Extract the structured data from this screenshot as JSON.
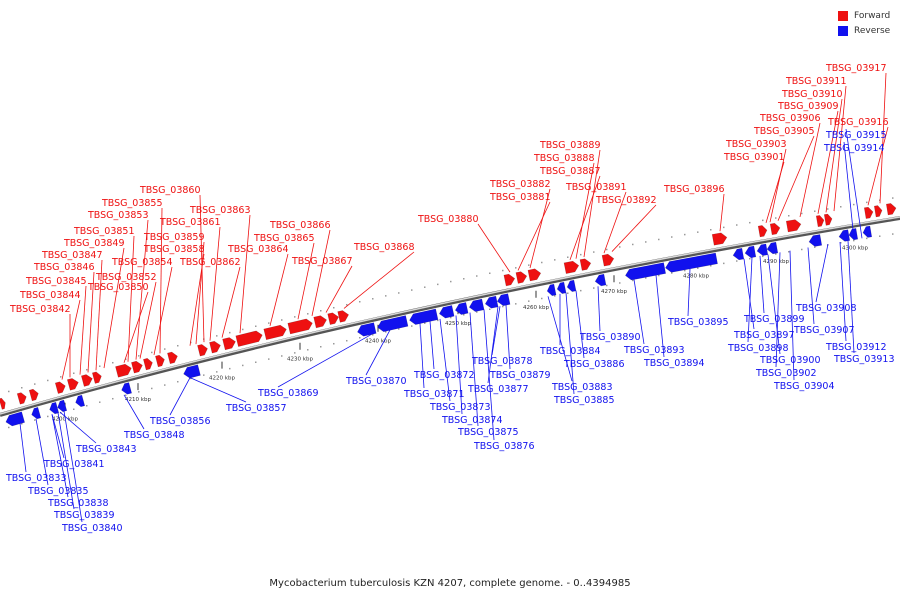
{
  "legend": {
    "forward_label": "Forward",
    "reverse_label": "Reverse",
    "forward_color": "#ee1111",
    "reverse_color": "#1111ee"
  },
  "caption": "Mycobacterium tuberculosis KZN 4207, complete genome. - 0..4394985",
  "tick_labels": [
    "4200 kbp",
    "4210 kbp",
    "4220 kbp",
    "4230 kbp",
    "4240 kbp",
    "4250 kbp",
    "4260 kbp",
    "4270 kbp",
    "4280 kbp",
    "4290 kbp",
    "4300 kbp"
  ],
  "forward_genes": [
    "TBSG_03842",
    "TBSG_03844",
    "TBSG_03845",
    "TBSG_03846",
    "TBSG_03847",
    "TBSG_03849",
    "TBSG_03850",
    "TBSG_03851",
    "TBSG_03852",
    "TBSG_03853",
    "TBSG_03854",
    "TBSG_03855",
    "TBSG_03858",
    "TBSG_03859",
    "TBSG_03860",
    "TBSG_03861",
    "TBSG_03862",
    "TBSG_03863",
    "TBSG_03864",
    "TBSG_03865",
    "TBSG_03866",
    "TBSG_03867",
    "TBSG_03868",
    "TBSG_03880",
    "TBSG_03881",
    "TBSG_03882",
    "TBSG_03887",
    "TBSG_03888",
    "TBSG_03889",
    "TBSG_03891",
    "TBSG_03892",
    "TBSG_03896",
    "TBSG_03901",
    "TBSG_03903",
    "TBSG_03905",
    "TBSG_03906",
    "TBSG_03909",
    "TBSG_03910",
    "TBSG_03911",
    "TBSG_03916",
    "TBSG_03917"
  ],
  "reverse_genes": [
    "TBSG_03833",
    "TBSG_03835",
    "TBSG_03838",
    "TBSG_03839",
    "TBSG_03840",
    "TBSG_03841",
    "TBSG_03843",
    "TBSG_03848",
    "TBSG_03856",
    "TBSG_03857",
    "TBSG_03869",
    "TBSG_03870",
    "TBSG_03871",
    "TBSG_03872",
    "TBSG_03873",
    "TBSG_03874",
    "TBSG_03875",
    "TBSG_03876",
    "TBSG_03877",
    "TBSG_03878",
    "TBSG_03879",
    "TBSG_03883",
    "TBSG_03884",
    "TBSG_03885",
    "TBSG_03886",
    "TBSG_03890",
    "TBSG_03893",
    "TBSG_03894",
    "TBSG_03895",
    "TBSG_03897",
    "TBSG_03898",
    "TBSG_03899",
    "TBSG_03900",
    "TBSG_03902",
    "TBSG_03904",
    "TBSG_03907",
    "TBSG_03908",
    "TBSG_03912",
    "TBSG_03913",
    "TBSG_03914",
    "TBSG_03915"
  ]
}
